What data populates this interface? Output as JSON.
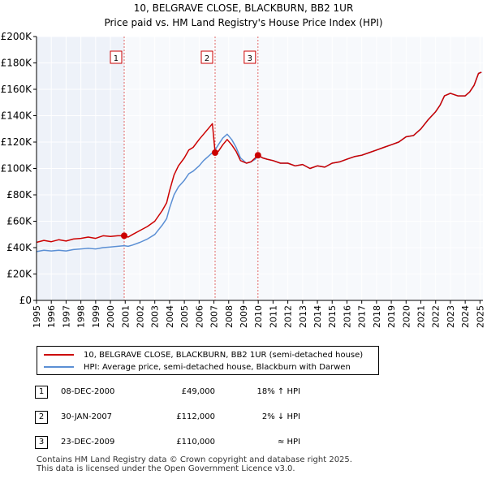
{
  "chart_data": {
    "type": "line",
    "title": "10, BELGRAVE CLOSE, BLACKBURN, BB2 1UR",
    "subtitle": "Price paid vs. HM Land Registry's House Price Index (HPI)",
    "xlim": [
      1995,
      2025.2
    ],
    "ylim": [
      0,
      200000
    ],
    "y_ticks": [
      0,
      20000,
      40000,
      60000,
      80000,
      100000,
      120000,
      140000,
      160000,
      180000,
      200000
    ],
    "y_tick_labels": [
      "£0",
      "£20K",
      "£40K",
      "£60K",
      "£80K",
      "£100K",
      "£120K",
      "£140K",
      "£160K",
      "£180K",
      "£200K"
    ],
    "x_tick_labels": [
      "1995",
      "1996",
      "1997",
      "1998",
      "1999",
      "2000",
      "2001",
      "2002",
      "2003",
      "2004",
      "2005",
      "2006",
      "2007",
      "2008",
      "2009",
      "2010",
      "2011",
      "2012",
      "2013",
      "2014",
      "2015",
      "2016",
      "2017",
      "2018",
      "2019",
      "2020",
      "2021",
      "2022",
      "2023",
      "2024",
      "2025"
    ],
    "series": [
      {
        "name": "10, BELGRAVE CLOSE, BLACKBURN, BB2 1UR (semi-detached house)",
        "color": "#cc0000",
        "x": [
          1995.0,
          1995.5,
          1996.0,
          1996.5,
          1997.0,
          1997.5,
          1998.0,
          1998.5,
          1999.0,
          1999.5,
          2000.0,
          2000.5,
          2000.93,
          2001.2,
          2001.5,
          2002.0,
          2002.5,
          2003.0,
          2003.5,
          2003.8,
          2004.0,
          2004.3,
          2004.6,
          2005.0,
          2005.3,
          2005.6,
          2006.0,
          2006.3,
          2006.6,
          2006.9,
          2007.08,
          2007.3,
          2007.6,
          2007.9,
          2008.2,
          2008.5,
          2008.8,
          2009.2,
          2009.5,
          2009.8,
          2009.98,
          2010.3,
          2010.6,
          2011.0,
          2011.5,
          2012.0,
          2012.5,
          2013.0,
          2013.5,
          2014.0,
          2014.5,
          2015.0,
          2015.5,
          2016.0,
          2016.5,
          2017.0,
          2017.5,
          2018.0,
          2018.5,
          2019.0,
          2019.5,
          2020.0,
          2020.5,
          2021.0,
          2021.5,
          2022.0,
          2022.3,
          2022.6,
          2023.0,
          2023.5,
          2024.0,
          2024.3,
          2024.6,
          2024.9,
          2025.1
        ],
        "y": [
          44000,
          45500,
          44500,
          46000,
          45000,
          46500,
          47000,
          48000,
          47000,
          49000,
          48500,
          49000,
          49000,
          48000,
          50000,
          53000,
          56000,
          60000,
          68000,
          74000,
          83000,
          95000,
          102000,
          108000,
          114000,
          116000,
          122000,
          126000,
          130000,
          134000,
          112000,
          113000,
          118000,
          122000,
          118000,
          113000,
          106000,
          104000,
          105000,
          108000,
          110000,
          108000,
          107000,
          106000,
          104000,
          104000,
          102000,
          103000,
          100000,
          102000,
          101000,
          104000,
          105000,
          107000,
          109000,
          110000,
          112000,
          114000,
          116000,
          118000,
          120000,
          124000,
          125000,
          130000,
          137000,
          143000,
          148000,
          155000,
          157000,
          155000,
          155000,
          158000,
          163000,
          172000,
          173000
        ]
      },
      {
        "name": "HPI: Average price, semi-detached house, Blackburn with Darwen",
        "color": "#5b8fd4",
        "x": [
          1995.0,
          1995.5,
          1996.0,
          1996.5,
          1997.0,
          1997.5,
          1998.0,
          1998.5,
          1999.0,
          1999.5,
          2000.0,
          2000.5,
          2000.93,
          2001.2,
          2001.5,
          2002.0,
          2002.5,
          2003.0,
          2003.5,
          2003.8,
          2004.0,
          2004.3,
          2004.6,
          2005.0,
          2005.3,
          2005.6,
          2006.0,
          2006.3,
          2006.6,
          2006.9,
          2007.08,
          2007.3,
          2007.6,
          2007.9,
          2008.2,
          2008.5,
          2008.8,
          2009.2,
          2009.5,
          2009.8,
          2009.98,
          2010.3,
          2010.6,
          2011.0,
          2011.5,
          2012.0,
          2012.5,
          2013.0,
          2013.5,
          2014.0,
          2014.5,
          2015.0,
          2015.5,
          2016.0,
          2016.5,
          2017.0,
          2017.5,
          2018.0,
          2018.5,
          2019.0,
          2019.5,
          2020.0,
          2020.5,
          2021.0,
          2021.5,
          2022.0,
          2022.3,
          2022.6,
          2023.0,
          2023.5,
          2024.0,
          2024.3,
          2024.6,
          2024.9,
          2025.1
        ],
        "y": [
          37000,
          38000,
          37500,
          38000,
          37500,
          38500,
          39000,
          39500,
          39000,
          40000,
          40500,
          41000,
          41500,
          41000,
          42000,
          44000,
          46500,
          50000,
          57000,
          62000,
          70000,
          80000,
          86000,
          91000,
          96000,
          98000,
          102000,
          106000,
          109000,
          112000,
          114000,
          118000,
          123000,
          126000,
          122000,
          116000,
          108000,
          104000,
          105000,
          107000,
          110000,
          108000,
          107000,
          106000,
          104000,
          104000,
          102000,
          103000,
          100000,
          102000,
          101000,
          104000,
          105000,
          107000,
          109000,
          110000,
          112000,
          114000,
          116000,
          118000,
          120000,
          124000,
          125000,
          130000,
          137000,
          143000,
          148000,
          155000,
          157000,
          155000,
          155000,
          158000,
          163000,
          172000,
          173000
        ]
      }
    ],
    "sales": [
      {
        "label": "1",
        "x": 2000.93,
        "price": 49000
      },
      {
        "label": "2",
        "x": 2007.08,
        "price": 112000
      },
      {
        "label": "3",
        "x": 2009.98,
        "price": 110000
      }
    ]
  },
  "legend": {
    "property": "10, BELGRAVE CLOSE, BLACKBURN, BB2 1UR (semi-detached house)",
    "hpi": "HPI: Average price, semi-detached house, Blackburn with Darwen"
  },
  "transactions": [
    {
      "num": "1",
      "date": "08-DEC-2000",
      "price": "£49,000",
      "hpi": "18% ↑ HPI"
    },
    {
      "num": "2",
      "date": "30-JAN-2007",
      "price": "£112,000",
      "hpi": "2% ↓ HPI"
    },
    {
      "num": "3",
      "date": "23-DEC-2009",
      "price": "£110,000",
      "hpi": "≈ HPI"
    }
  ],
  "footer": {
    "line1": "Contains HM Land Registry data © Crown copyright and database right 2025.",
    "line2": "This data is licensed under the Open Government Licence v3.0."
  }
}
